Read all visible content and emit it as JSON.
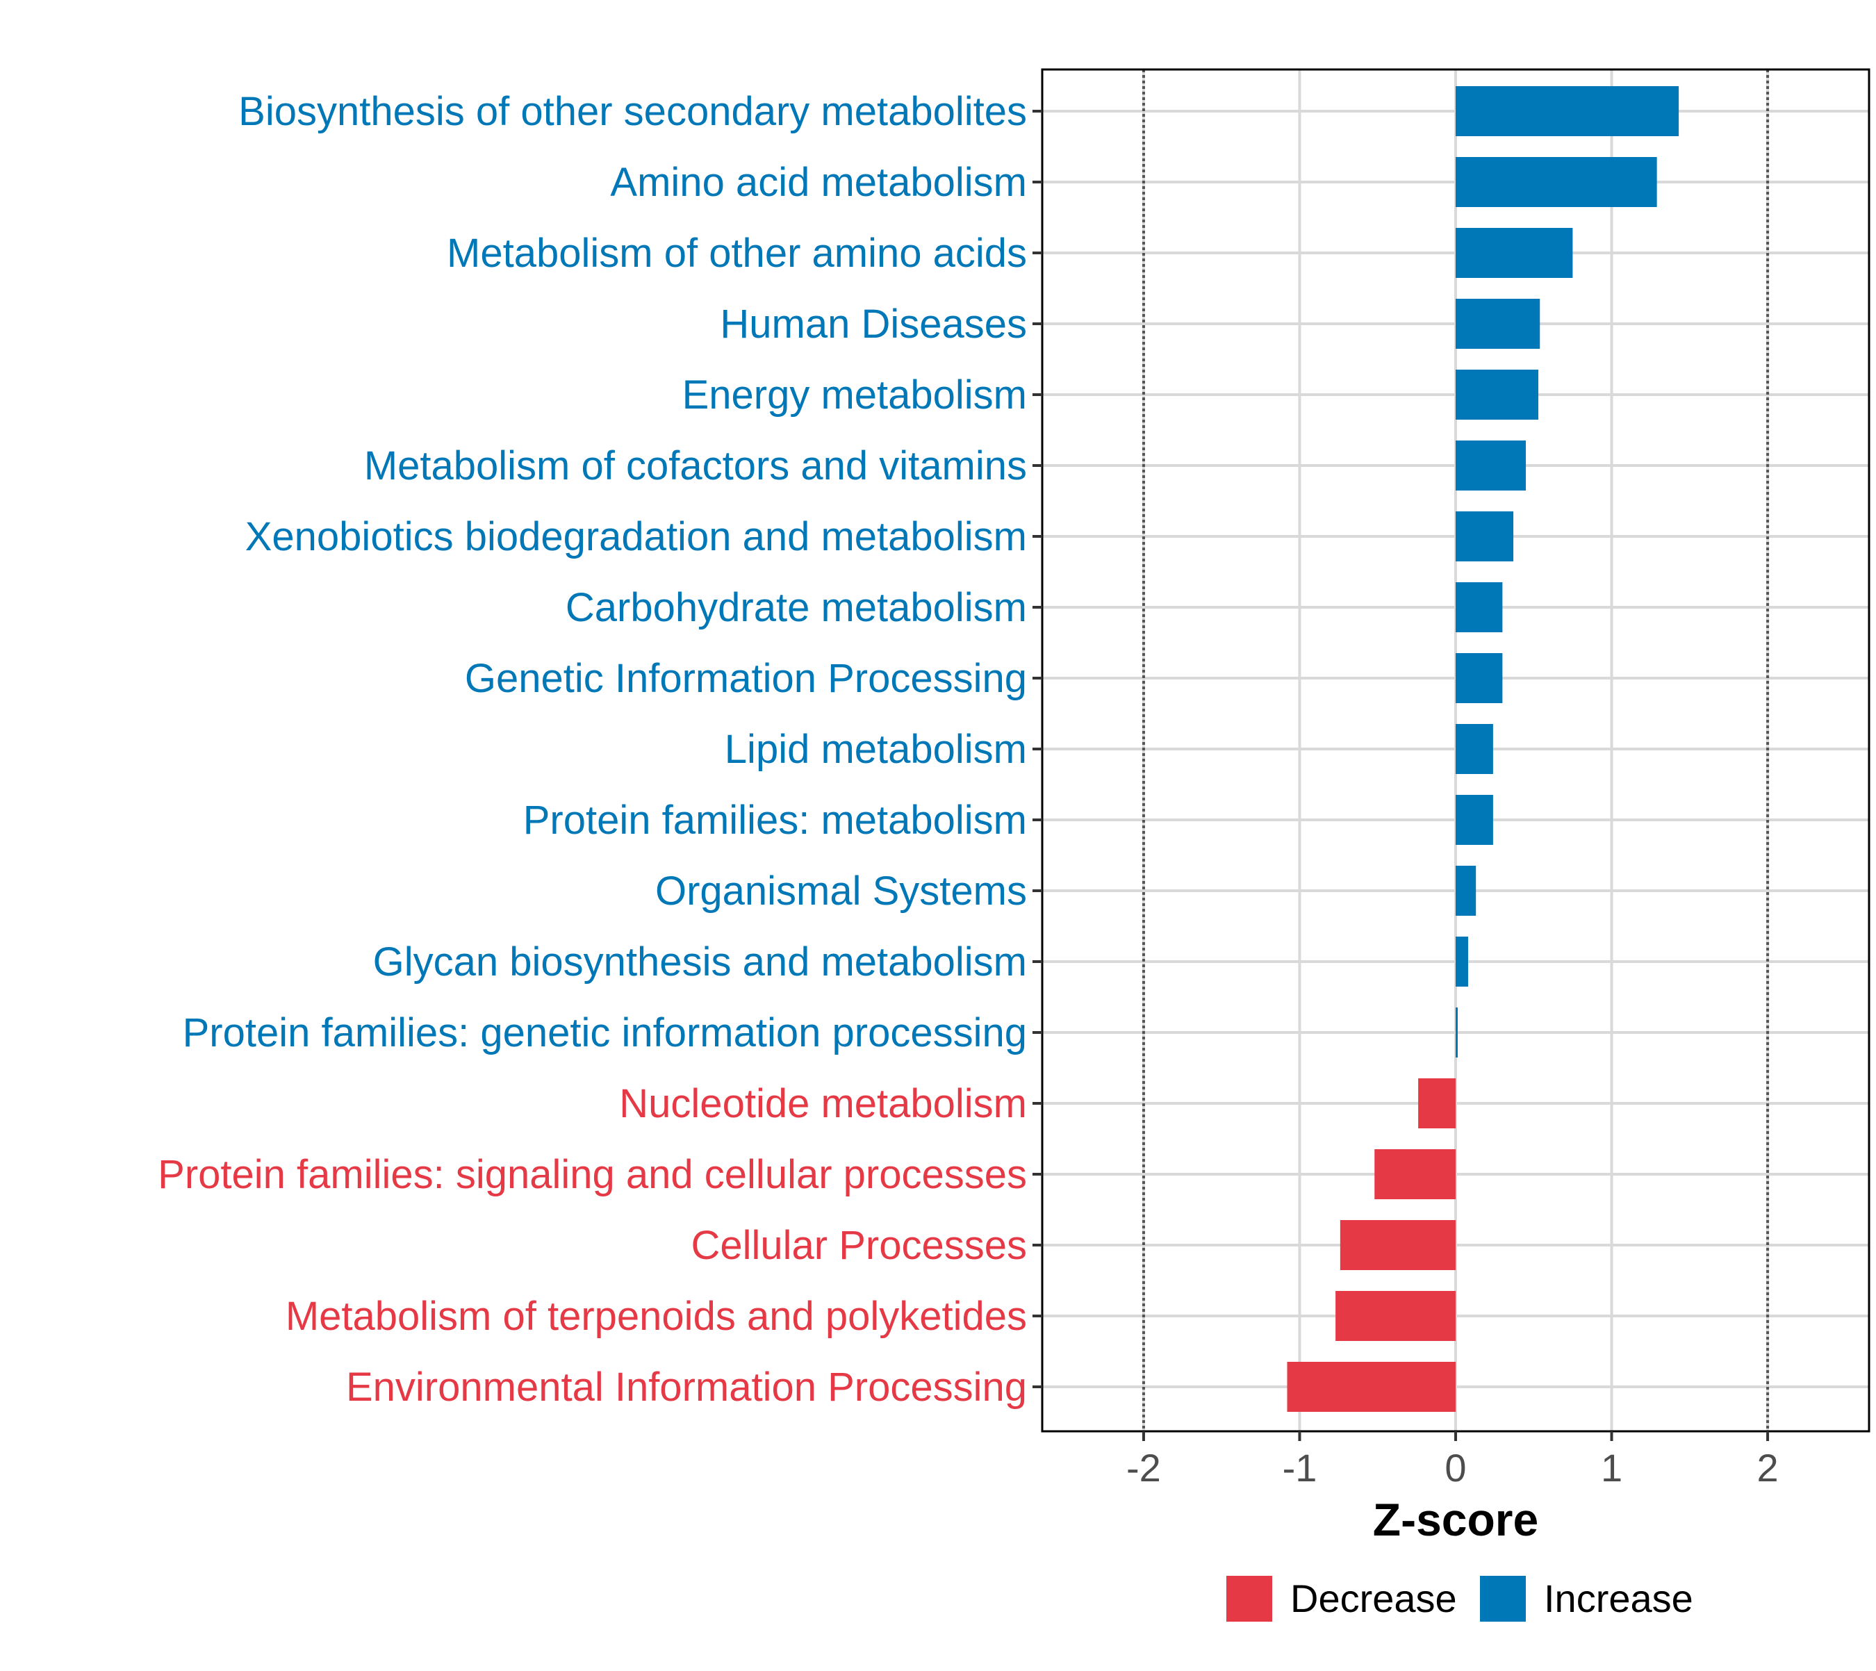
{
  "chart_data": {
    "type": "bar",
    "orientation": "horizontal",
    "title": "",
    "xlabel": "Z-score",
    "ylabel": "",
    "xlim": [
      -2.65,
      2.65
    ],
    "xticks": [
      -2,
      -1,
      0,
      1,
      2
    ],
    "reference_lines": [
      -2,
      2
    ],
    "grid": true,
    "legend_position": "bottom",
    "categories": [
      "Biosynthesis of other secondary metabolites",
      "Amino acid metabolism",
      "Metabolism of other amino acids",
      "Human Diseases",
      "Energy metabolism",
      "Metabolism of cofactors and vitamins",
      "Xenobiotics biodegradation and metabolism",
      "Carbohydrate metabolism",
      "Genetic Information Processing",
      "Lipid metabolism",
      "Protein families: metabolism",
      "Organismal Systems",
      "Glycan biosynthesis and metabolism",
      "Protein families: genetic information processing",
      "Nucleotide metabolism",
      "Protein families: signaling and cellular processes",
      "Cellular Processes",
      "Metabolism of terpenoids and polyketides",
      "Environmental Information Processing"
    ],
    "values": [
      1.43,
      1.29,
      0.75,
      0.54,
      0.53,
      0.45,
      0.37,
      0.3,
      0.3,
      0.24,
      0.24,
      0.13,
      0.08,
      0.01,
      -0.24,
      -0.52,
      -0.74,
      -0.77,
      -1.08
    ],
    "groups": [
      "Increase",
      "Increase",
      "Increase",
      "Increase",
      "Increase",
      "Increase",
      "Increase",
      "Increase",
      "Increase",
      "Increase",
      "Increase",
      "Increase",
      "Increase",
      "Increase",
      "Decrease",
      "Decrease",
      "Decrease",
      "Decrease",
      "Decrease"
    ],
    "legend": [
      {
        "label": "Decrease",
        "color": "#e63946"
      },
      {
        "label": "Increase",
        "color": "#0077b6"
      }
    ],
    "colors": {
      "Increase": "#0077b6",
      "Decrease": "#e63946"
    }
  }
}
